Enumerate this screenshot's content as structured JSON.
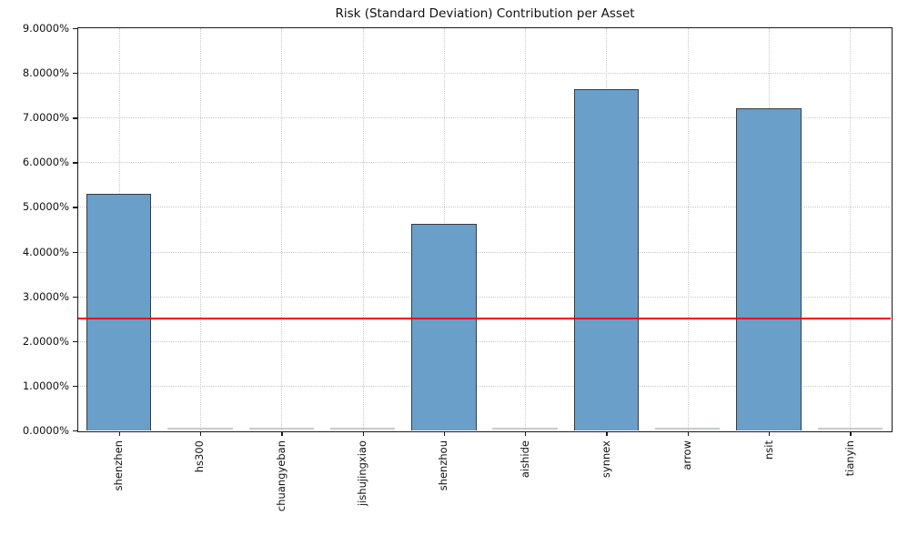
{
  "chart_data": {
    "type": "bar",
    "title": "Risk (Standard Deviation) Contribution per Asset",
    "xlabel": "",
    "ylabel": "",
    "categories": [
      "shenzhen",
      "hs300",
      "chuangyeban",
      "jishujingxiao",
      "shenzhou",
      "aishide",
      "synnex",
      "arrow",
      "nsit",
      "tianyin"
    ],
    "values": [
      5.3,
      0.0,
      0.0,
      0.0,
      4.63,
      0.0,
      7.64,
      0.0,
      7.2,
      0.0
    ],
    "value_unit": "percent",
    "ylim": [
      0,
      9
    ],
    "y_tick_labels": [
      "0.0000%",
      "1.0000%",
      "2.0000%",
      "3.0000%",
      "4.0000%",
      "5.0000%",
      "6.0000%",
      "7.0000%",
      "8.0000%",
      "9.0000%"
    ],
    "threshold_line": {
      "value": 2.5,
      "color": "#ff0000"
    },
    "grid": true,
    "legend": null,
    "colors": {
      "bar_fill": "#6a9fc9",
      "bar_edge": "#333d46",
      "zero_bar": "#9aa0a4",
      "grid_color": "#c9c9c9",
      "axis_color": "#1a1a1a",
      "background": "#ffffff"
    }
  }
}
